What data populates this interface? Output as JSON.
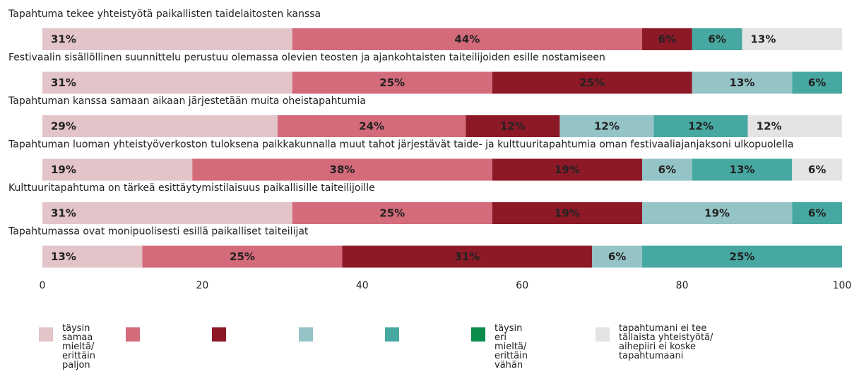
{
  "chart_data": {
    "type": "stacked-bar-horizontal",
    "categories": [
      "Tapahtuma tekee yhteistyötä paikallisten taidelaitosten kanssa",
      "Festivaalin sisällöllinen suunnittelu perustuu olemassa olevien teosten ja ajankohtaisten taiteilijoiden esille nostamiseen",
      "Tapahtuman kanssa samaan aikaan järjestetään muita oheistapahtumia",
      "Tapahtuman luoman yhteistyöverkoston tuloksena paikkakunnalla muut tahot järjestävät taide- ja kulttuuritapahtumia oman festivaaliajanjaksoni ulkopuolella",
      "Kulttuuritapahtuma on tärkeä esittäytymistilaisuus paikallisille taiteilijoille",
      "Tapahtumassa ovat monipuolisesti esillä paikalliset taiteilijat"
    ],
    "series": [
      {
        "name": "täysin samaa mieltä/ erittäin paljon",
        "color": "#e3c4c9",
        "values": [
          31.25,
          31.25,
          29.41,
          18.75,
          31.25,
          12.5
        ],
        "value_labels": [
          "31%",
          "31%",
          "29%",
          "19%",
          "31%",
          "13%"
        ]
      },
      {
        "name": null,
        "color": "#d46b7b",
        "values": [
          43.75,
          25,
          23.53,
          37.5,
          25,
          25
        ],
        "value_labels": [
          "44%",
          "25%",
          "24%",
          "38%",
          "25%",
          "25%"
        ]
      },
      {
        "name": null,
        "color": "#8d1927",
        "values": [
          6.25,
          25,
          11.76,
          18.75,
          18.75,
          31.25
        ],
        "value_labels": [
          "6%",
          "25%",
          "12%",
          "19%",
          "19%",
          "31%"
        ]
      },
      {
        "name": null,
        "color": "#95c4c7",
        "values": [
          null,
          12.5,
          11.76,
          6.25,
          18.75,
          6.25
        ],
        "value_labels": [
          null,
          "13%",
          "12%",
          "6%",
          "19%",
          "6%"
        ]
      },
      {
        "name": null,
        "color": "#47a8a1",
        "values": [
          6.25,
          6.25,
          11.76,
          12.5,
          6.25,
          25
        ],
        "value_labels": [
          "6%",
          "6%",
          "12%",
          "13%",
          "6%",
          "25%"
        ]
      },
      {
        "name": "täysin eri mieltä/ erittäin vähän",
        "color": "#0a8c4c",
        "values": [
          null,
          null,
          null,
          null,
          null,
          null
        ],
        "value_labels": [
          null,
          null,
          null,
          null,
          null,
          null
        ]
      },
      {
        "name": "tapahtumani ei tee tällaista yhteistyötä/ aihepiiri ei koske tapahtumaani",
        "color": "#e4e4e4",
        "values": [
          12.5,
          null,
          11.76,
          6.25,
          null,
          null
        ],
        "value_labels": [
          "13%",
          null,
          "12%",
          "6%",
          null,
          null
        ]
      }
    ],
    "xlim": [
      0,
      100
    ],
    "xticks": [
      0,
      20,
      40,
      60,
      80,
      100
    ]
  }
}
